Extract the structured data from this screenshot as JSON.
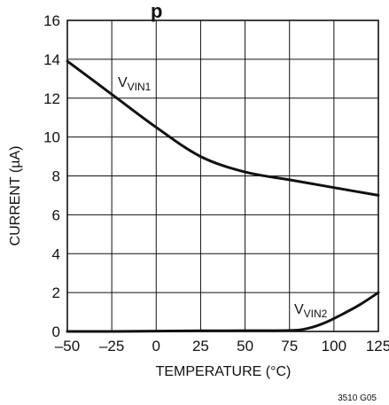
{
  "chart_data": {
    "type": "line",
    "title_fragment": "p",
    "xlabel": "TEMPERATURE (°C)",
    "ylabel": "CURRENT (µA)",
    "xlim": [
      -50,
      125
    ],
    "ylim": [
      0,
      16
    ],
    "x_ticks": [
      "–50",
      "–25",
      "0",
      "25",
      "50",
      "75",
      "100",
      "125"
    ],
    "y_ticks": [
      "0",
      "2",
      "4",
      "6",
      "8",
      "10",
      "12",
      "14",
      "16"
    ],
    "grid": true,
    "series": [
      {
        "name_main": "V",
        "name_sub": "VIN1",
        "x": [
          -50,
          -25,
          0,
          25,
          50,
          75,
          100,
          125
        ],
        "y": [
          13.9,
          12.2,
          10.5,
          9.0,
          8.2,
          7.8,
          7.4,
          7.0
        ]
      },
      {
        "name_main": "V",
        "name_sub": "VIN2",
        "x": [
          -50,
          -25,
          0,
          25,
          50,
          75,
          85,
          95,
          105,
          115,
          125
        ],
        "y": [
          0.0,
          0.0,
          0.02,
          0.03,
          0.04,
          0.05,
          0.15,
          0.45,
          0.9,
          1.4,
          2.0
        ]
      }
    ]
  },
  "figure_note": "3510 G05"
}
